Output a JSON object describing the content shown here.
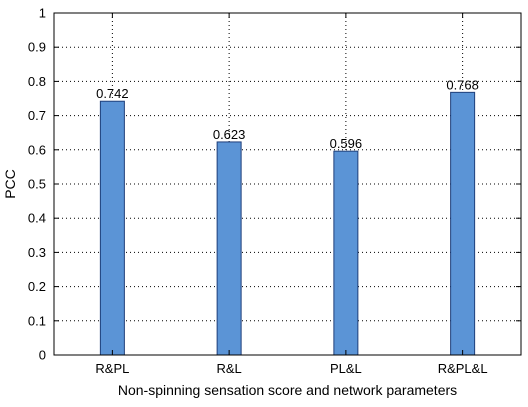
{
  "chart_data": {
    "type": "bar",
    "categories": [
      "R&PL",
      "R&L",
      "PL&L",
      "R&PL&L"
    ],
    "values": [
      0.742,
      0.623,
      0.596,
      0.768
    ],
    "value_labels": [
      "0.742",
      "0.623",
      "0.596",
      "0.768"
    ],
    "title": "",
    "xlabel": "Non-spinning sensation score and network parameters",
    "ylabel": "PCC",
    "ylim": [
      0,
      1
    ],
    "yticks": [
      0,
      0.1,
      0.2,
      0.3,
      0.4,
      0.5,
      0.6,
      0.7,
      0.8,
      0.9,
      1
    ],
    "ytick_labels": [
      "0",
      "0.1",
      "0.2",
      "0.3",
      "0.4",
      "0.5",
      "0.6",
      "0.7",
      "0.8",
      "0.9",
      "1"
    ],
    "grid": true,
    "grid_style": "dotted",
    "bar_color": "#5b94d6",
    "bar_edge_color": "#1f3f7a",
    "legend": "none"
  }
}
